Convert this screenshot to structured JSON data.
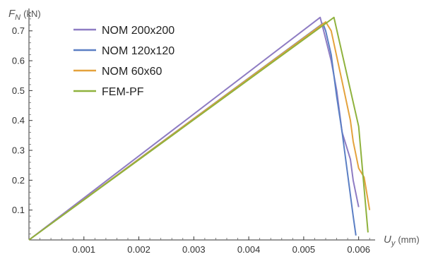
{
  "chart_data": {
    "type": "line",
    "title": "",
    "xlabel": {
      "symbol": "U",
      "subscript": "y",
      "unit": "(mm)"
    },
    "ylabel": {
      "symbol": "F",
      "subscript": "N",
      "unit": "(kN)"
    },
    "xlim": [
      0,
      0.0063
    ],
    "ylim": [
      0,
      0.775
    ],
    "x_ticks": [
      "0.001",
      "0.002",
      "0.003",
      "0.004",
      "0.005",
      "0.006"
    ],
    "x_tick_values": [
      0.001,
      0.002,
      0.003,
      0.004,
      0.005,
      0.006
    ],
    "y_ticks": [
      "0.1",
      "0.2",
      "0.3",
      "0.4",
      "0.5",
      "0.6",
      "0.7"
    ],
    "y_tick_values": [
      0.1,
      0.2,
      0.3,
      0.4,
      0.5,
      0.6,
      0.7
    ],
    "grid": false,
    "legend_position": "top-left",
    "series": [
      {
        "name": "NOM 200x200",
        "color": "#8e7cc3",
        "points": [
          [
            0,
            0
          ],
          [
            0.0053,
            0.745
          ],
          [
            0.00535,
            0.71
          ],
          [
            0.0055,
            0.6
          ],
          [
            0.0056,
            0.5
          ],
          [
            0.0057,
            0.36
          ],
          [
            0.00585,
            0.27
          ],
          [
            0.0059,
            0.2
          ],
          [
            0.006,
            0.11
          ]
        ]
      },
      {
        "name": "NOM 120x120",
        "color": "#5b7fc4",
        "points": [
          [
            0,
            0
          ],
          [
            0.00535,
            0.725
          ],
          [
            0.0054,
            0.7
          ],
          [
            0.0055,
            0.62
          ],
          [
            0.0056,
            0.48
          ],
          [
            0.0057,
            0.36
          ],
          [
            0.0058,
            0.22
          ],
          [
            0.0059,
            0.08
          ],
          [
            0.00595,
            0.015
          ]
        ]
      },
      {
        "name": "NOM 60x60",
        "color": "#e4a23c",
        "points": [
          [
            0,
            0
          ],
          [
            0.0054,
            0.73
          ],
          [
            0.0055,
            0.7
          ],
          [
            0.0057,
            0.53
          ],
          [
            0.00585,
            0.4
          ],
          [
            0.0059,
            0.33
          ],
          [
            0.006,
            0.24
          ],
          [
            0.0061,
            0.21
          ],
          [
            0.0062,
            0.1
          ]
        ]
      },
      {
        "name": "FEM-PF",
        "color": "#8fb23d",
        "points": [
          [
            0,
            0
          ],
          [
            0.00555,
            0.745
          ],
          [
            0.006,
            0.38
          ],
          [
            0.00617,
            0.025
          ]
        ]
      }
    ]
  }
}
